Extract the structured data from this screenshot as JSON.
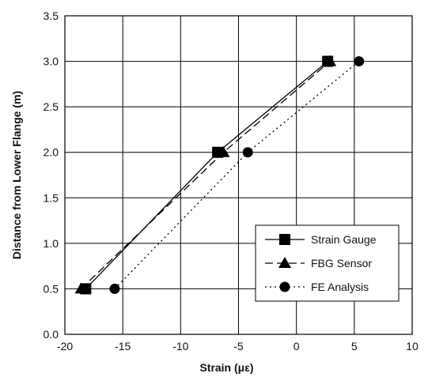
{
  "chart_data": {
    "type": "line",
    "title": "",
    "xlabel": "Strain (με)",
    "ylabel": "Distance from Lower Flange (m)",
    "xlim": [
      -20,
      10
    ],
    "ylim": [
      0,
      3.5
    ],
    "xticks": [
      -20,
      -15,
      -10,
      -5,
      0,
      5,
      10
    ],
    "yticks": [
      0.0,
      0.5,
      1.0,
      1.5,
      2.0,
      2.5,
      3.0,
      3.5
    ],
    "xtick_labels": [
      "-20",
      "-15",
      "-10",
      "-5",
      "0",
      "5",
      "10"
    ],
    "ytick_labels": [
      "0.0",
      "0.5",
      "1.0",
      "1.5",
      "2.0",
      "2.5",
      "3.0",
      "3.5"
    ],
    "grid": true,
    "legend_position": "lower-right",
    "series": [
      {
        "name": "Strain Gauge",
        "marker": "square",
        "line_style": "solid",
        "color": "#000000",
        "points": [
          {
            "x": -18.2,
            "y": 0.5
          },
          {
            "x": -6.8,
            "y": 2.0
          },
          {
            "x": 2.7,
            "y": 3.0
          }
        ]
      },
      {
        "name": "FBG Sensor",
        "marker": "triangle",
        "line_style": "dashed",
        "color": "#000000",
        "points": [
          {
            "x": -18.6,
            "y": 0.5
          },
          {
            "x": -6.3,
            "y": 2.0
          },
          {
            "x": 2.9,
            "y": 3.0
          }
        ]
      },
      {
        "name": "FE Analysis",
        "marker": "circle",
        "line_style": "dotted",
        "color": "#000000",
        "points": [
          {
            "x": -15.7,
            "y": 0.5
          },
          {
            "x": -4.2,
            "y": 2.0
          },
          {
            "x": 5.4,
            "y": 3.0
          }
        ]
      }
    ]
  }
}
